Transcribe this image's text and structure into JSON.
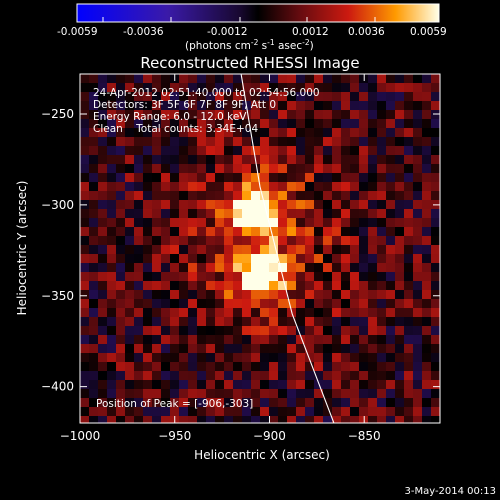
{
  "colorbar": {
    "ticks": [
      "-0.0059",
      "-0.0036",
      "-0.0012",
      "0.0012",
      "0.0036",
      "0.0059"
    ],
    "units_main": "(photons cm",
    "units_sup1": "-2",
    "units_mid": " s",
    "units_sup2": "-1",
    "units_end": " asec",
    "units_sup3": "-2",
    "units_close": ")",
    "range": [
      -0.0059,
      0.0059
    ]
  },
  "title": "Reconstructed RHESSI Image",
  "annotations": {
    "time": "24-Apr-2012 02:51:40.000 to 02:54:56.000",
    "detectors": "Detectors: 3F 5F 6F 7F 8F 9F, Att 0",
    "energy": "Energy Range: 6.0 - 12.0 keV",
    "clean": "Clean    Total counts: 3.34E+04",
    "peak": "Position of Peak = [-906,-303]"
  },
  "footer": {
    "date": "3-May-2014 00:13"
  },
  "chart_data": {
    "type": "heatmap",
    "title": "Reconstructed RHESSI Image",
    "xlabel": "Heliocentric X (arcsec)",
    "ylabel": "Heliocentric Y (arcsec)",
    "xlim": [
      -1000,
      -810
    ],
    "ylim": [
      -420,
      -228
    ],
    "x_ticks": [
      -1000,
      -950,
      -900,
      -850
    ],
    "x_tick_labels": [
      "−1000",
      "−950",
      "−900",
      "−850"
    ],
    "y_ticks": [
      -250,
      -300,
      -350,
      -400
    ],
    "y_tick_labels": [
      "−250",
      "−300",
      "−350",
      "−400"
    ],
    "sources": [
      {
        "x": -906,
        "y": -303,
        "peak": 0.0059
      },
      {
        "x": -904,
        "y": -340,
        "peak": 0.0052
      }
    ],
    "limb": [
      [
        -915,
        -228
      ],
      [
        -905,
        -290
      ],
      [
        -888,
        -360
      ],
      [
        -866,
        -420
      ]
    ]
  }
}
